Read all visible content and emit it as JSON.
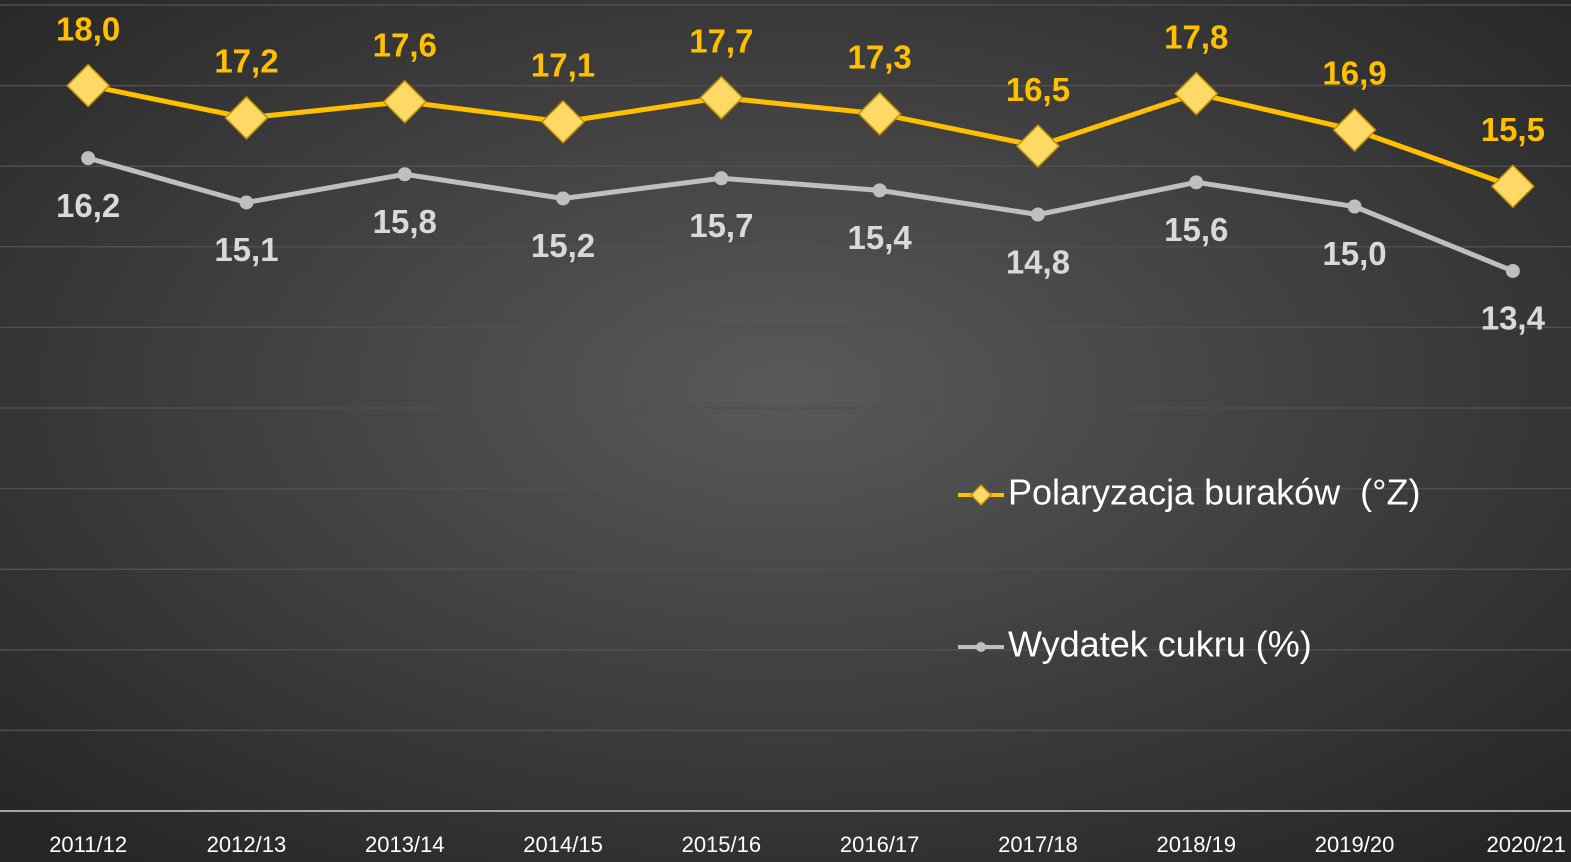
{
  "chart_data": {
    "type": "line",
    "categories": [
      "2011/12",
      "2012/13",
      "2013/14",
      "2014/15",
      "2015/16",
      "2016/17",
      "2017/18",
      "2018/19",
      "2019/20",
      "2020/21"
    ],
    "series": [
      {
        "name": "Polaryzacja buraków  (°Z)",
        "color": "#ffc000",
        "marker": "diamond",
        "values": [
          18.0,
          17.2,
          17.6,
          17.1,
          17.7,
          17.3,
          16.5,
          17.8,
          16.9,
          15.5
        ],
        "value_labels": [
          "18,0",
          "17,2",
          "17,6",
          "17,1",
          "17,7",
          "17,3",
          "16,5",
          "17,8",
          "16,9",
          "15,5"
        ]
      },
      {
        "name": "Wydatek cukru (%)",
        "color": "#bfbfbf",
        "marker": "circle",
        "values": [
          16.2,
          15.1,
          15.8,
          15.2,
          15.7,
          15.4,
          14.8,
          15.6,
          15.0,
          13.4
        ],
        "value_labels": [
          "16,2",
          "15,1",
          "15,8",
          "15,2",
          "15,7",
          "15,4",
          "14,8",
          "15,6",
          "15,0",
          "13,4"
        ]
      }
    ],
    "ylim": [
      0,
      20
    ],
    "yticks": [
      0,
      2,
      4,
      6,
      8,
      10,
      12,
      14,
      16,
      18,
      20
    ],
    "grid": true,
    "legend": "right"
  }
}
